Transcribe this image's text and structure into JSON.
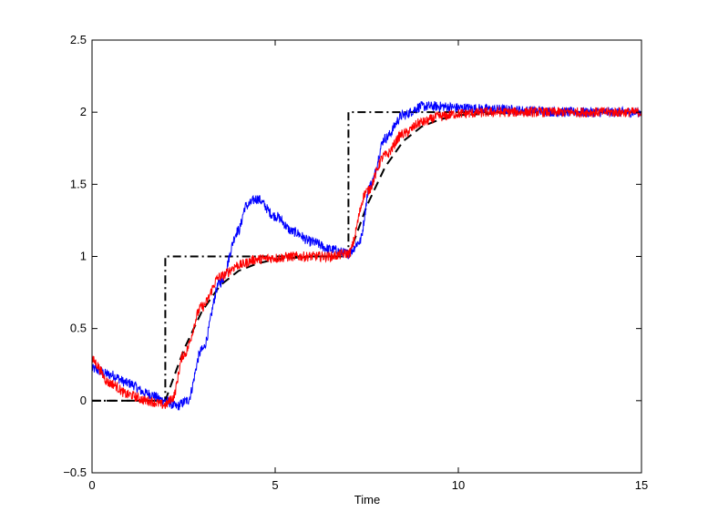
{
  "chart_data": {
    "type": "line",
    "title": "",
    "xlabel": "Time",
    "ylabel": "",
    "xlim": [
      0,
      15
    ],
    "ylim": [
      -0.5,
      2.5
    ],
    "xticks": [
      0,
      5,
      10,
      15
    ],
    "yticks": [
      -0.5,
      0,
      0.5,
      1,
      1.5,
      2,
      2.5
    ],
    "xtick_labels": [
      "0",
      "5",
      "10",
      "15"
    ],
    "ytick_labels": [
      "−0.5",
      "0",
      "0.5",
      "1",
      "1.5",
      "2",
      "2.5"
    ],
    "grid": false,
    "series": [
      {
        "style": "dash-dot",
        "color": "#000000",
        "x": [
          0,
          2,
          2,
          7,
          7,
          15
        ],
        "y": [
          0,
          0,
          1,
          1,
          2,
          2
        ]
      },
      {
        "style": "dashed",
        "color": "#000000",
        "x": [
          0,
          2,
          2.5,
          3,
          3.5,
          4,
          4.5,
          5,
          5.5,
          6,
          6.5,
          7,
          7.5,
          8,
          8.5,
          9,
          9.5,
          10,
          11,
          12,
          13,
          14,
          15
        ],
        "y": [
          0,
          0,
          0.35,
          0.62,
          0.8,
          0.9,
          0.95,
          0.98,
          0.99,
          1.0,
          1.0,
          1.0,
          1.35,
          1.62,
          1.8,
          1.9,
          1.95,
          1.98,
          1.99,
          2.0,
          2.0,
          2.0,
          2.0
        ]
      },
      {
        "style": "solid-noisy",
        "color": "#0000ff",
        "x": [
          0,
          0.5,
          1,
          1.5,
          2,
          2.3,
          2.6,
          3,
          3.5,
          4,
          4.2,
          4.5,
          5,
          5.5,
          6,
          6.5,
          7,
          7.3,
          7.6,
          8,
          8.5,
          9,
          9.5,
          10,
          11,
          12,
          13,
          14,
          15
        ],
        "y": [
          0.22,
          0.18,
          0.12,
          0.05,
          0.0,
          -0.04,
          0.0,
          0.35,
          0.82,
          1.18,
          1.35,
          1.4,
          1.28,
          1.17,
          1.1,
          1.05,
          1.02,
          1.1,
          1.5,
          1.82,
          1.98,
          2.04,
          2.04,
          2.03,
          2.02,
          2.01,
          2.0,
          2.0,
          2.0
        ]
      },
      {
        "style": "solid-noisy",
        "color": "#ff0000",
        "x": [
          0,
          0.5,
          1,
          1.5,
          2,
          2.2,
          2.5,
          3,
          3.5,
          4,
          4.5,
          5,
          5.5,
          6,
          6.5,
          7,
          7.5,
          8,
          8.5,
          9,
          9.5,
          10,
          11,
          12,
          13,
          14,
          15
        ],
        "y": [
          0.28,
          0.12,
          0.04,
          0.0,
          -0.03,
          0.02,
          0.32,
          0.65,
          0.86,
          0.94,
          0.98,
          0.99,
          1.0,
          1.0,
          1.0,
          1.02,
          1.45,
          1.7,
          1.85,
          1.93,
          1.97,
          1.99,
          2.0,
          2.0,
          2.0,
          2.0,
          2.0
        ]
      }
    ]
  }
}
